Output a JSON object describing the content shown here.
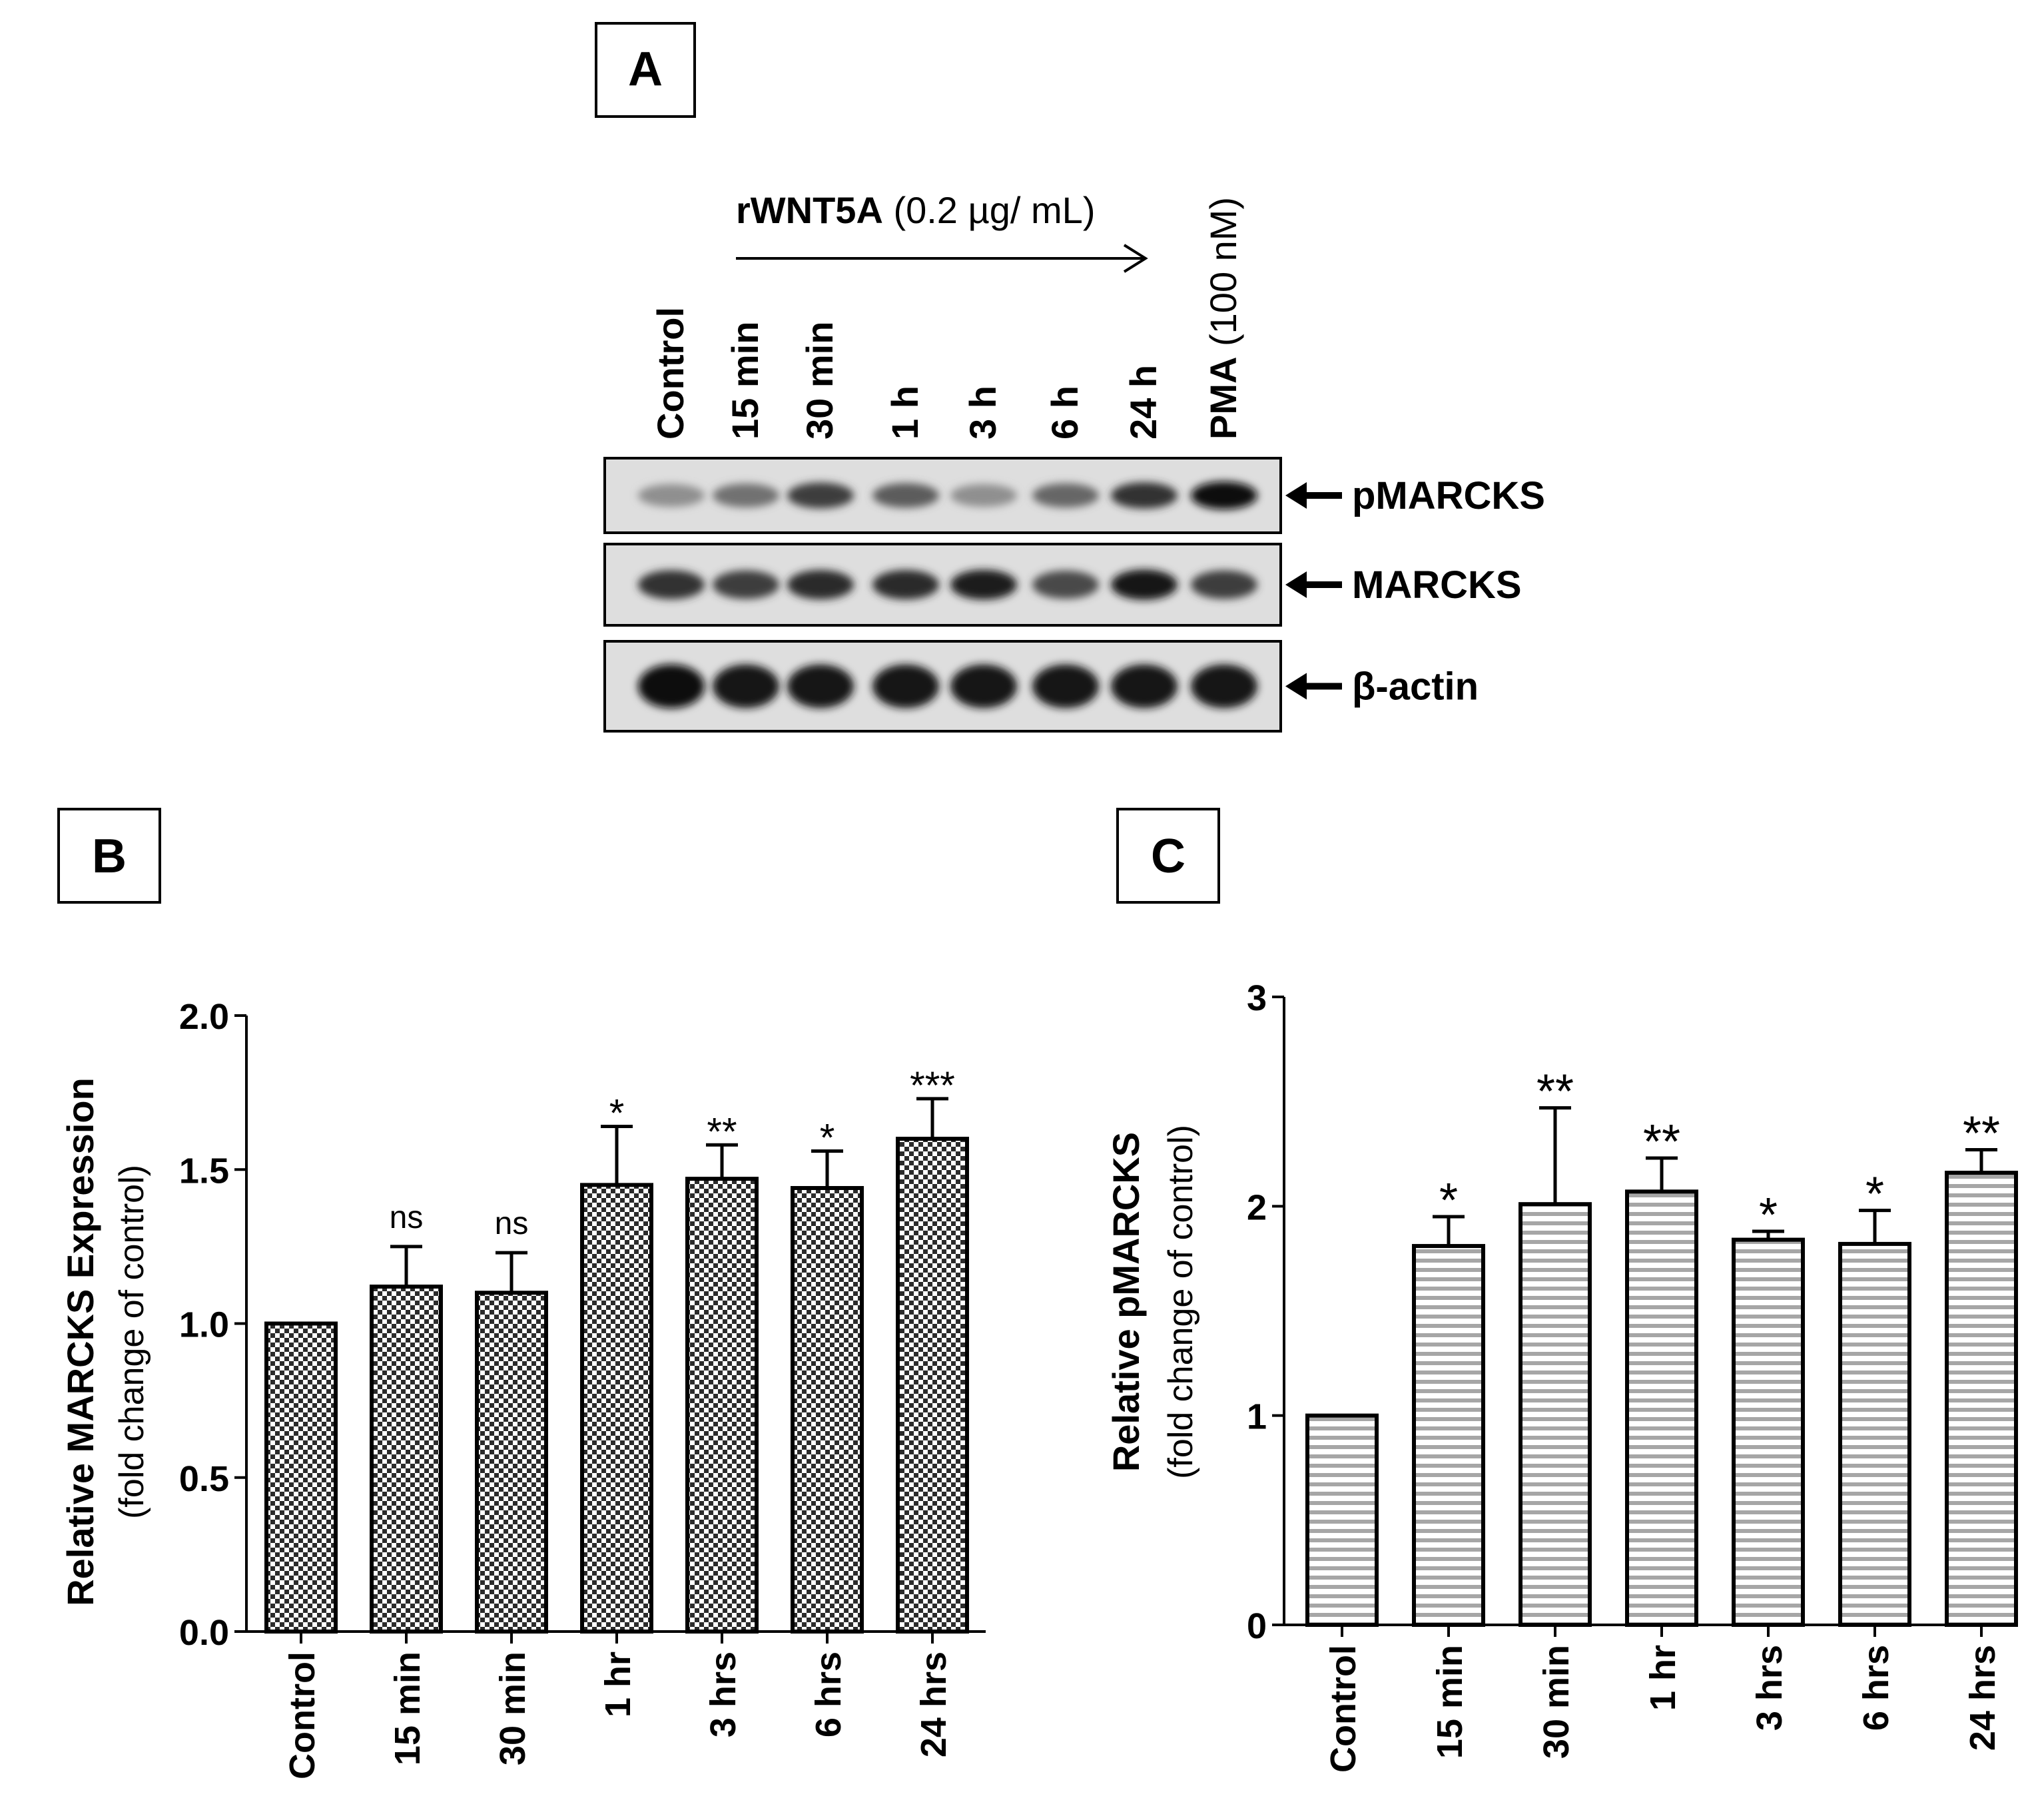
{
  "panels": {
    "a": {
      "label": "A",
      "treatment_bold": "rWNT5A",
      "treatment_rest": " (0.2 µg/ mL)",
      "lanes": [
        {
          "bold": "Control",
          "rest": ""
        },
        {
          "bold": "15 min",
          "rest": ""
        },
        {
          "bold": "30 min",
          "rest": ""
        },
        {
          "bold": "1 h",
          "rest": ""
        },
        {
          "bold": "3 h",
          "rest": ""
        },
        {
          "bold": "6 h",
          "rest": ""
        },
        {
          "bold": "24 h",
          "rest": ""
        },
        {
          "bold": "PMA",
          "rest": " (100 nM)"
        }
      ],
      "blots": [
        {
          "label": "pMARCKS",
          "intensities": [
            0.35,
            0.5,
            0.75,
            0.6,
            0.35,
            0.55,
            0.8,
            1.0
          ]
        },
        {
          "label": "MARCKS",
          "intensities": [
            0.8,
            0.75,
            0.85,
            0.85,
            0.9,
            0.7,
            0.95,
            0.75
          ]
        },
        {
          "label": "β-actin",
          "intensities": [
            1.0,
            0.95,
            0.95,
            0.95,
            0.95,
            0.95,
            0.95,
            0.95
          ]
        }
      ]
    },
    "b": {
      "label": "B"
    },
    "c": {
      "label": "C"
    }
  },
  "chart_data": [
    {
      "panel": "B",
      "type": "bar",
      "categories": [
        "Control",
        "15 min",
        "30 min",
        "1 hr",
        "3 hrs",
        "6 hrs",
        "24 hrs"
      ],
      "values": [
        1.0,
        1.12,
        1.1,
        1.45,
        1.47,
        1.44,
        1.6
      ],
      "errors": [
        0.0,
        0.13,
        0.13,
        0.19,
        0.11,
        0.12,
        0.13
      ],
      "significance": [
        "",
        "ns",
        "ns",
        "*",
        "**",
        "*",
        "***"
      ],
      "ylabel": "Relative MARCKS  Expression",
      "ylabel_sub": "(fold change of control)",
      "ylim": [
        0,
        2.0
      ],
      "yticks": [
        "0.0",
        "0.5",
        "1.0",
        "1.5",
        "2.0"
      ],
      "pattern": "checkered"
    },
    {
      "panel": "C",
      "type": "bar",
      "categories": [
        "Control",
        "15 min",
        "30 min",
        "1 hr",
        "3 hrs",
        "6 hrs",
        "24 hrs"
      ],
      "values": [
        1.0,
        1.81,
        2.01,
        2.07,
        1.84,
        1.82,
        2.16
      ],
      "errors": [
        0.0,
        0.14,
        0.46,
        0.16,
        0.04,
        0.16,
        0.11
      ],
      "significance": [
        "",
        "*",
        "**",
        "**",
        "*",
        "*",
        "**"
      ],
      "ylabel": "Relative pMARCKS",
      "ylabel_sub": "(fold change of control)",
      "ylim": [
        0,
        3
      ],
      "yticks": [
        "0",
        "1",
        "2",
        "3"
      ],
      "pattern": "horizontal-lines"
    }
  ]
}
